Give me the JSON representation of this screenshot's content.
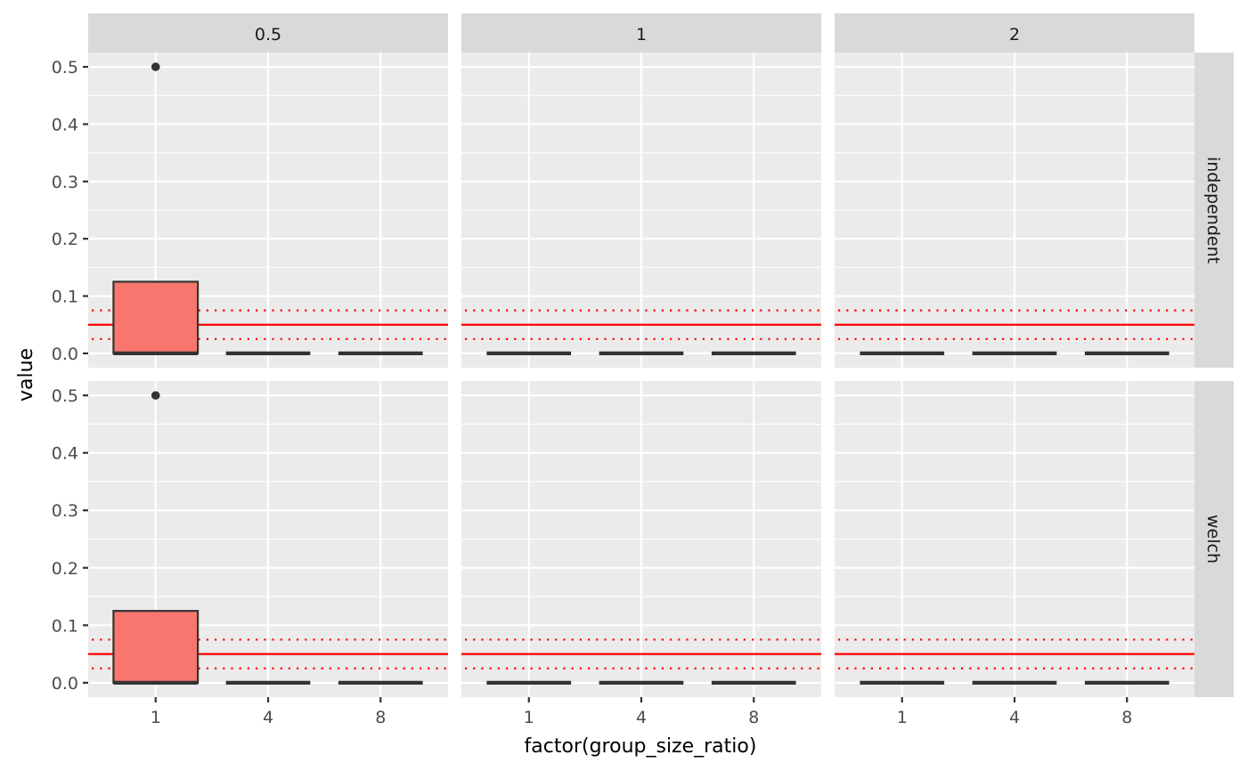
{
  "chart_data": {
    "type": "boxplot",
    "facet_columns": [
      "0.5",
      "1",
      "2"
    ],
    "facet_rows": [
      "independent",
      "welch"
    ],
    "categories": [
      "1",
      "4",
      "8"
    ],
    "xlabel": "factor(group_size_ratio)",
    "ylabel": "value",
    "ylim": [
      -0.025,
      0.525
    ],
    "yticks": [
      "0.0",
      "0.1",
      "0.2",
      "0.3",
      "0.4",
      "0.5"
    ],
    "reference_lines": {
      "solid": 0.05,
      "dotted": [
        0.025,
        0.075
      ],
      "color": "#ff0000"
    },
    "box_fill": "#f8766d",
    "panels": [
      {
        "row": "independent",
        "col": "0.5",
        "boxes": [
          {
            "category": "1",
            "min": 0,
            "q1": 0,
            "median": 0,
            "q3": 0.125,
            "max": 0.125,
            "outliers": [
              0.5
            ]
          },
          {
            "category": "4",
            "min": 0,
            "q1": 0,
            "median": 0,
            "q3": 0,
            "max": 0,
            "outliers": []
          },
          {
            "category": "8",
            "min": 0,
            "q1": 0,
            "median": 0,
            "q3": 0,
            "max": 0,
            "outliers": []
          }
        ]
      },
      {
        "row": "independent",
        "col": "1",
        "boxes": [
          {
            "category": "1",
            "min": 0,
            "q1": 0,
            "median": 0,
            "q3": 0,
            "max": 0,
            "outliers": []
          },
          {
            "category": "4",
            "min": 0,
            "q1": 0,
            "median": 0,
            "q3": 0,
            "max": 0,
            "outliers": []
          },
          {
            "category": "8",
            "min": 0,
            "q1": 0,
            "median": 0,
            "q3": 0,
            "max": 0,
            "outliers": []
          }
        ]
      },
      {
        "row": "independent",
        "col": "2",
        "boxes": [
          {
            "category": "1",
            "min": 0,
            "q1": 0,
            "median": 0,
            "q3": 0,
            "max": 0,
            "outliers": []
          },
          {
            "category": "4",
            "min": 0,
            "q1": 0,
            "median": 0,
            "q3": 0,
            "max": 0,
            "outliers": []
          },
          {
            "category": "8",
            "min": 0,
            "q1": 0,
            "median": 0,
            "q3": 0,
            "max": 0,
            "outliers": []
          }
        ]
      },
      {
        "row": "welch",
        "col": "0.5",
        "boxes": [
          {
            "category": "1",
            "min": 0,
            "q1": 0,
            "median": 0,
            "q3": 0.125,
            "max": 0.125,
            "outliers": [
              0.5
            ]
          },
          {
            "category": "4",
            "min": 0,
            "q1": 0,
            "median": 0,
            "q3": 0,
            "max": 0,
            "outliers": []
          },
          {
            "category": "8",
            "min": 0,
            "q1": 0,
            "median": 0,
            "q3": 0,
            "max": 0,
            "outliers": []
          }
        ]
      },
      {
        "row": "welch",
        "col": "1",
        "boxes": [
          {
            "category": "1",
            "min": 0,
            "q1": 0,
            "median": 0,
            "q3": 0,
            "max": 0,
            "outliers": []
          },
          {
            "category": "4",
            "min": 0,
            "q1": 0,
            "median": 0,
            "q3": 0,
            "max": 0,
            "outliers": []
          },
          {
            "category": "8",
            "min": 0,
            "q1": 0,
            "median": 0,
            "q3": 0,
            "max": 0,
            "outliers": []
          }
        ]
      },
      {
        "row": "welch",
        "col": "2",
        "boxes": [
          {
            "category": "1",
            "min": 0,
            "q1": 0,
            "median": 0,
            "q3": 0,
            "max": 0,
            "outliers": []
          },
          {
            "category": "4",
            "min": 0,
            "q1": 0,
            "median": 0,
            "q3": 0,
            "max": 0,
            "outliers": []
          },
          {
            "category": "8",
            "min": 0,
            "q1": 0,
            "median": 0,
            "q3": 0,
            "max": 0,
            "outliers": []
          }
        ]
      }
    ]
  }
}
